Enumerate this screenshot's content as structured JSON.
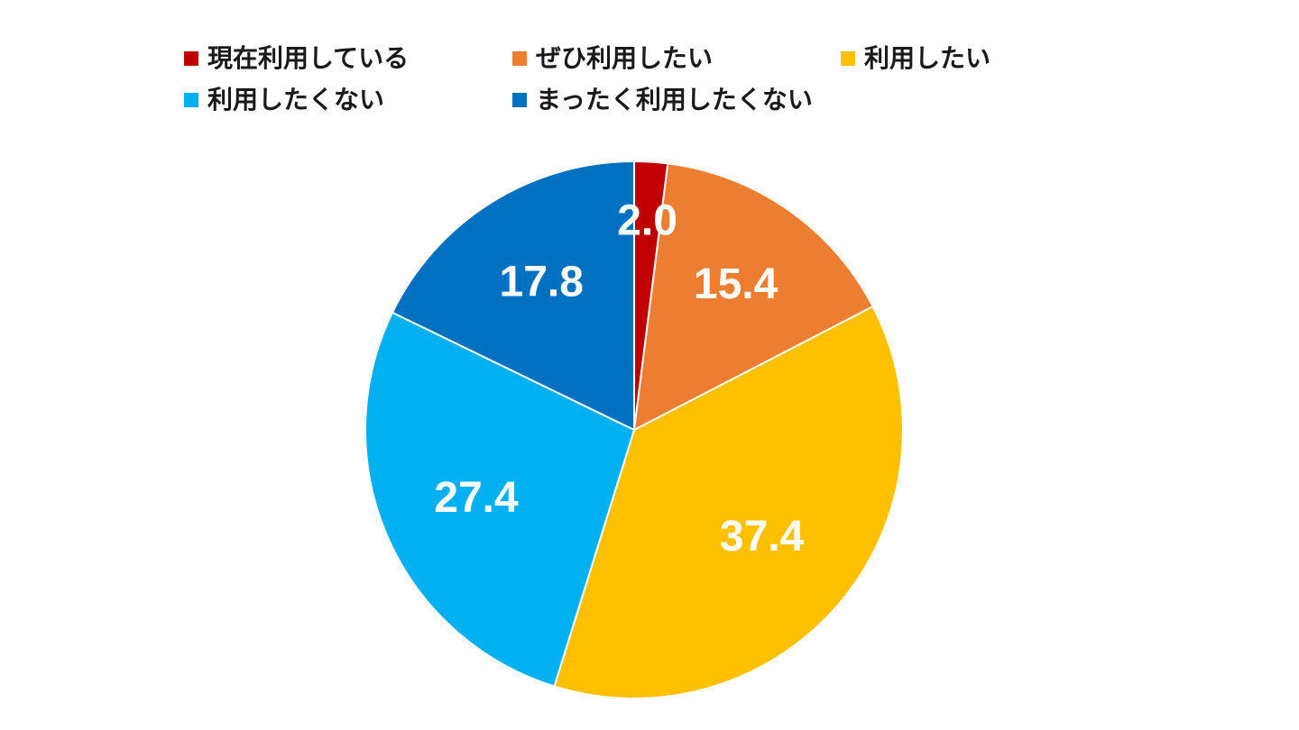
{
  "chart_data": {
    "type": "pie",
    "title": "",
    "legend_placement": "top",
    "categories": [
      "現在利用している",
      "ぜひ利用したい",
      "利用したい",
      "利用したくない",
      "まったく利用したくない"
    ],
    "values": [
      2.0,
      15.4,
      37.4,
      27.4,
      17.8
    ],
    "value_labels": [
      "2.0",
      "15.4",
      "37.4",
      "27.4",
      "17.8"
    ],
    "colors": [
      "#C00000",
      "#ED7D31",
      "#FFC000",
      "#00B0F0",
      "#0070C0"
    ],
    "start_angle": "12 o'clock",
    "direction": "clockwise"
  }
}
